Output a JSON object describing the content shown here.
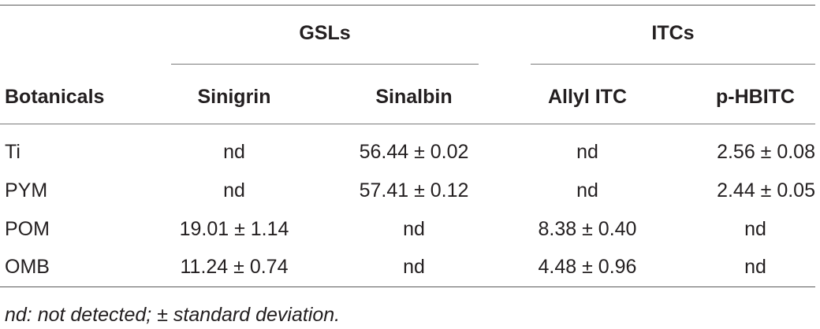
{
  "table": {
    "group_headers": {
      "gsls": "GSLs",
      "itcs": "ITCs"
    },
    "columns": {
      "botanicals": "Botanicals",
      "sinigrin": "Sinigrin",
      "sinalbin": "Sinalbin",
      "allyl_itc": "Allyl ITC",
      "phbitc": "p-HBITC"
    },
    "rows": [
      {
        "botanical": "Ti",
        "sinigrin": "nd",
        "sinalbin": "56.44 ± 0.02",
        "allyl_itc": "nd",
        "phbitc": "2.56 ± 0.08"
      },
      {
        "botanical": "PYM",
        "sinigrin": "nd",
        "sinalbin": "57.41 ± 0.12",
        "allyl_itc": "nd",
        "phbitc": "2.44 ± 0.05"
      },
      {
        "botanical": "POM",
        "sinigrin": "19.01 ± 1.14",
        "sinalbin": "nd",
        "allyl_itc": "8.38 ± 0.40",
        "phbitc": "nd"
      },
      {
        "botanical": "OMB",
        "sinigrin": "11.24 ± 0.74",
        "sinalbin": "nd",
        "allyl_itc": "4.48 ± 0.96",
        "phbitc": "nd"
      }
    ],
    "footnote": "nd: not detected; ± standard deviation."
  }
}
